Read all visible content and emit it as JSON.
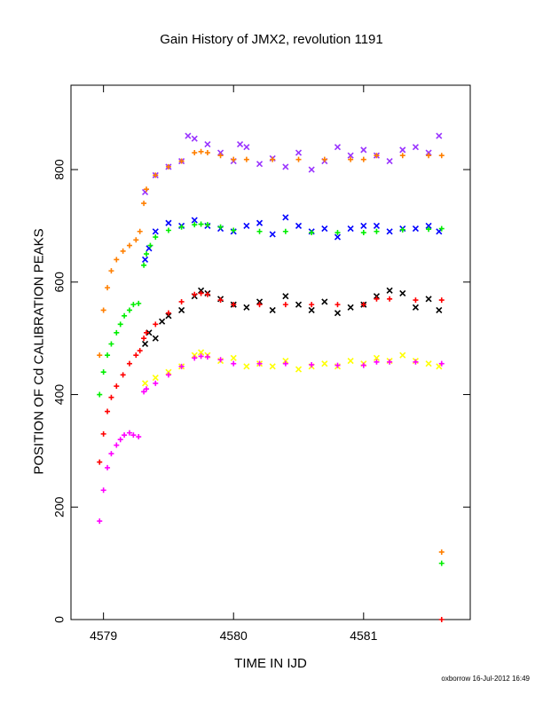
{
  "chart_data": {
    "type": "scatter",
    "title": "Gain History of JMX2, revolution 1191",
    "xlabel": "TIME IN IJD",
    "ylabel": "POSITION OF Cd CALIBRATION PEAKS",
    "xlim": [
      4578.75,
      4581.82
    ],
    "ylim": [
      0,
      950
    ],
    "x_ticks": [
      4579,
      4580,
      4581
    ],
    "x_tick_labels": [
      "4579",
      "4580",
      "4581"
    ],
    "y_ticks": [
      0,
      200,
      400,
      600,
      800
    ],
    "y_tick_labels": [
      "0",
      "200",
      "400",
      "600",
      "800"
    ],
    "grid": false,
    "series": [
      {
        "marker": "x",
        "color": "#9933ff",
        "x": [
          4579.32,
          4579.4,
          4579.5,
          4579.6,
          4579.65,
          4579.7,
          4579.8,
          4579.9,
          4580.0,
          4580.05,
          4580.1,
          4580.2,
          4580.3,
          4580.4,
          4580.5,
          4580.6,
          4580.7,
          4580.8,
          4580.9,
          4581.0,
          4581.1,
          4581.2,
          4581.3,
          4581.4,
          4581.5,
          4581.58
        ],
        "y": [
          760,
          790,
          805,
          815,
          860,
          855,
          845,
          830,
          815,
          845,
          840,
          810,
          820,
          805,
          830,
          800,
          815,
          840,
          825,
          835,
          825,
          815,
          835,
          840,
          830,
          860
        ]
      },
      {
        "marker": "+",
        "color": "#ff7f00",
        "x": [
          4578.97,
          4579.0,
          4579.03,
          4579.06,
          4579.1,
          4579.15,
          4579.2,
          4579.25,
          4579.28,
          4579.31,
          4579.33,
          4579.4,
          4579.5,
          4579.6,
          4579.7,
          4579.75,
          4579.8,
          4579.9,
          4580.0,
          4580.1,
          4580.3,
          4580.5,
          4580.7,
          4580.9,
          4581.0,
          4581.1,
          4581.3,
          4581.5,
          4581.6,
          4581.6
        ],
        "y": [
          470,
          550,
          590,
          620,
          640,
          655,
          665,
          675,
          690,
          740,
          765,
          790,
          805,
          815,
          830,
          832,
          830,
          825,
          818,
          818,
          818,
          818,
          818,
          818,
          818,
          825,
          825,
          825,
          825,
          120
        ]
      },
      {
        "marker": "x",
        "color": "#0000ff",
        "x": [
          4579.32,
          4579.35,
          4579.4,
          4579.5,
          4579.6,
          4579.7,
          4579.8,
          4579.9,
          4580.0,
          4580.1,
          4580.2,
          4580.3,
          4580.4,
          4580.5,
          4580.6,
          4580.7,
          4580.8,
          4580.9,
          4581.0,
          4581.1,
          4581.2,
          4581.3,
          4581.4,
          4581.5,
          4581.58
        ],
        "y": [
          640,
          660,
          690,
          705,
          700,
          710,
          700,
          695,
          690,
          700,
          705,
          685,
          715,
          700,
          690,
          695,
          680,
          695,
          700,
          700,
          690,
          695,
          695,
          700,
          690
        ]
      },
      {
        "marker": "+",
        "color": "#00ee00",
        "x": [
          4578.97,
          4579.0,
          4579.03,
          4579.06,
          4579.1,
          4579.13,
          4579.16,
          4579.2,
          4579.23,
          4579.27,
          4579.31,
          4579.33,
          4579.36,
          4579.4,
          4579.5,
          4579.6,
          4579.7,
          4579.75,
          4579.8,
          4579.9,
          4580.0,
          4580.2,
          4580.4,
          4580.6,
          4580.8,
          4581.0,
          4581.1,
          4581.3,
          4581.5,
          4581.6,
          4581.6
        ],
        "y": [
          400,
          440,
          470,
          490,
          510,
          525,
          540,
          550,
          560,
          562,
          630,
          650,
          665,
          680,
          692,
          698,
          702,
          703,
          702,
          698,
          692,
          690,
          690,
          688,
          688,
          688,
          690,
          693,
          694,
          695,
          100
        ]
      },
      {
        "marker": "x",
        "color": "#000000",
        "x": [
          4579.32,
          4579.35,
          4579.4,
          4579.45,
          4579.5,
          4579.6,
          4579.7,
          4579.75,
          4579.8,
          4579.9,
          4580.0,
          4580.1,
          4580.2,
          4580.3,
          4580.4,
          4580.5,
          4580.6,
          4580.7,
          4580.8,
          4580.9,
          4581.0,
          4581.1,
          4581.2,
          4581.3,
          4581.4,
          4581.5,
          4581.58
        ],
        "y": [
          490,
          510,
          500,
          530,
          540,
          550,
          575,
          585,
          580,
          570,
          560,
          555,
          565,
          550,
          575,
          560,
          550,
          565,
          545,
          555,
          560,
          575,
          585,
          580,
          555,
          570,
          550
        ]
      },
      {
        "marker": "+",
        "color": "#ff0000",
        "x": [
          4578.97,
          4579.0,
          4579.03,
          4579.06,
          4579.1,
          4579.15,
          4579.2,
          4579.25,
          4579.28,
          4579.31,
          4579.33,
          4579.4,
          4579.5,
          4579.6,
          4579.7,
          4579.75,
          4579.8,
          4579.9,
          4580.0,
          4580.2,
          4580.4,
          4580.6,
          4580.8,
          4581.0,
          4581.1,
          4581.2,
          4581.4,
          4581.6,
          4581.6
        ],
        "y": [
          280,
          330,
          370,
          395,
          415,
          435,
          455,
          470,
          478,
          500,
          510,
          525,
          545,
          565,
          578,
          580,
          578,
          568,
          560,
          560,
          560,
          560,
          560,
          560,
          570,
          570,
          568,
          568,
          0
        ]
      },
      {
        "marker": "x",
        "color": "#ffff00",
        "x": [
          4579.32,
          4579.4,
          4579.5,
          4579.6,
          4579.7,
          4579.75,
          4579.8,
          4579.9,
          4580.0,
          4580.1,
          4580.2,
          4580.3,
          4580.4,
          4580.5,
          4580.6,
          4580.7,
          4580.8,
          4580.9,
          4581.0,
          4581.1,
          4581.2,
          4581.3,
          4581.4,
          4581.5,
          4581.58
        ],
        "y": [
          420,
          430,
          440,
          450,
          470,
          475,
          470,
          460,
          465,
          450,
          455,
          450,
          460,
          445,
          450,
          455,
          450,
          460,
          455,
          465,
          460,
          470,
          460,
          455,
          450
        ]
      },
      {
        "marker": "+",
        "color": "#ff00ff",
        "x": [
          4578.97,
          4579.0,
          4579.03,
          4579.06,
          4579.1,
          4579.13,
          4579.16,
          4579.2,
          4579.23,
          4579.27,
          4579.31,
          4579.33,
          4579.4,
          4579.5,
          4579.6,
          4579.7,
          4579.75,
          4579.8,
          4579.9,
          4580.0,
          4580.2,
          4580.4,
          4580.6,
          4580.8,
          4581.0,
          4581.1,
          4581.2,
          4581.4,
          4581.6
        ],
        "y": [
          175,
          230,
          270,
          295,
          310,
          320,
          328,
          332,
          328,
          325,
          405,
          410,
          420,
          435,
          450,
          465,
          468,
          467,
          462,
          455,
          455,
          455,
          453,
          452,
          452,
          458,
          458,
          458,
          455
        ]
      }
    ]
  },
  "footer": "oxborrow 16-Jul-2012 16:49"
}
